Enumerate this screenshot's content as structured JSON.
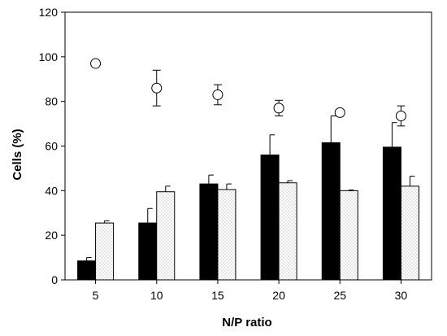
{
  "chart_data": {
    "type": "bar",
    "title": "",
    "xlabel": "N/P ratio",
    "ylabel": "Cells (%)",
    "categories": [
      "5",
      "10",
      "15",
      "20",
      "25",
      "30"
    ],
    "ylim": [
      0,
      120
    ],
    "yticks": [
      0,
      20,
      40,
      60,
      80,
      100,
      120
    ],
    "grid": false,
    "legend": "none",
    "series": [
      {
        "mark": "bar",
        "color": "#000000",
        "values": [
          8.5,
          25.5,
          43,
          56,
          61.5,
          59.5
        ],
        "error": [
          1.5,
          6.5,
          4,
          9,
          12,
          11
        ]
      },
      {
        "mark": "bar",
        "color": "#ffffff",
        "pattern": "stipple",
        "values": [
          25.5,
          39.5,
          40.5,
          43.5,
          40,
          42
        ],
        "error": [
          1,
          2.5,
          2.5,
          1,
          0.3,
          4.5
        ]
      },
      {
        "mark": "open-circle",
        "color": "#000000",
        "values": [
          97,
          86,
          83,
          77,
          75,
          73.5
        ],
        "error": [
          0.5,
          8,
          4.5,
          3.5,
          0.5,
          4.5
        ]
      }
    ]
  }
}
